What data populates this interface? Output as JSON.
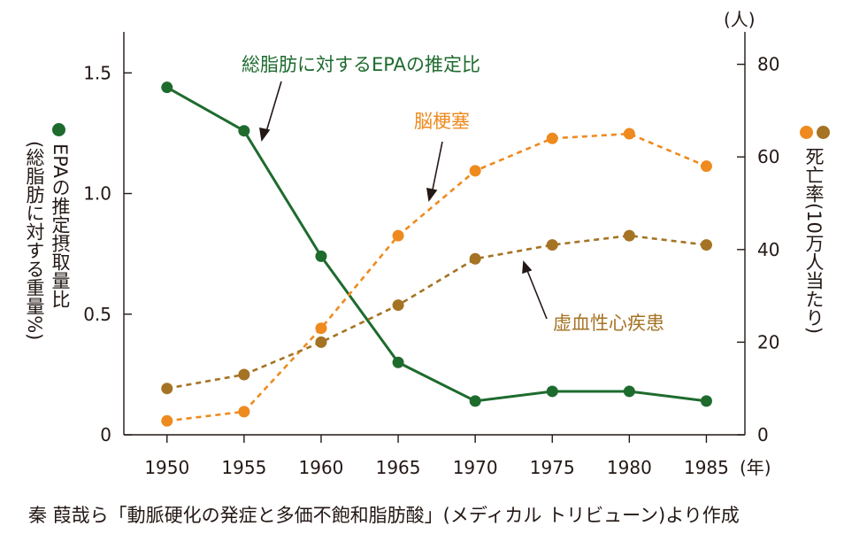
{
  "source_text": "秦 葭哉ら「動脈硬化の発症と多価不飽和脂肪酸」(メディカル トリビューン)より作成",
  "left_axis_label": "EPAの推定摂取量比(総脂肪に対する重量%)",
  "left_axis_label_line1": "EPAの推定摂取量比",
  "left_axis_label_line2": "(総脂肪に対する重量%)",
  "right_axis_label": "死亡率(10万人当たり)",
  "right_unit": "(人)",
  "x_unit": "(年)",
  "colors": {
    "green": "#1e6b2e",
    "orange": "#ee8a1e",
    "brown": "#a57324",
    "axis": "#231815"
  },
  "chart_data": {
    "type": "line",
    "x": [
      1950,
      1955,
      1960,
      1965,
      1970,
      1975,
      1980,
      1985
    ],
    "xlabel": "(年)",
    "y_left": {
      "label": "EPAの推定摂取量比(総脂肪に対する重量%)",
      "lim": [
        0,
        1.67
      ],
      "ticks": [
        0,
        0.5,
        1.0,
        1.5
      ],
      "tick_labels": [
        "0",
        "0.5",
        "1.0",
        "1.5"
      ]
    },
    "y_right": {
      "label": "死亡率(10万人当たり)",
      "unit": "(人)",
      "lim": [
        0,
        87
      ],
      "ticks": [
        0,
        20,
        40,
        60,
        80
      ],
      "tick_labels": [
        "0",
        "20",
        "40",
        "60",
        "80"
      ]
    },
    "series": [
      {
        "name": "総脂肪に対するEPAの推定比",
        "axis": "left",
        "style": "solid",
        "color": "#1e6b2e",
        "values": [
          1.44,
          1.26,
          0.74,
          0.3,
          0.14,
          0.18,
          0.18,
          0.14
        ]
      },
      {
        "name": "脳梗塞",
        "axis": "right",
        "style": "dashed",
        "color": "#ee8a1e",
        "values": [
          3,
          5,
          23,
          43,
          57,
          64,
          65,
          58
        ]
      },
      {
        "name": "虚血性心疾患",
        "axis": "right",
        "style": "dashed",
        "color": "#a57324",
        "values": [
          10,
          13,
          20,
          28,
          38,
          41,
          43,
          41
        ]
      }
    ],
    "x_tick_labels": [
      "1950",
      "1955",
      "1960",
      "1965",
      "1970",
      "1975",
      "1980",
      "1985"
    ],
    "grid": false
  }
}
